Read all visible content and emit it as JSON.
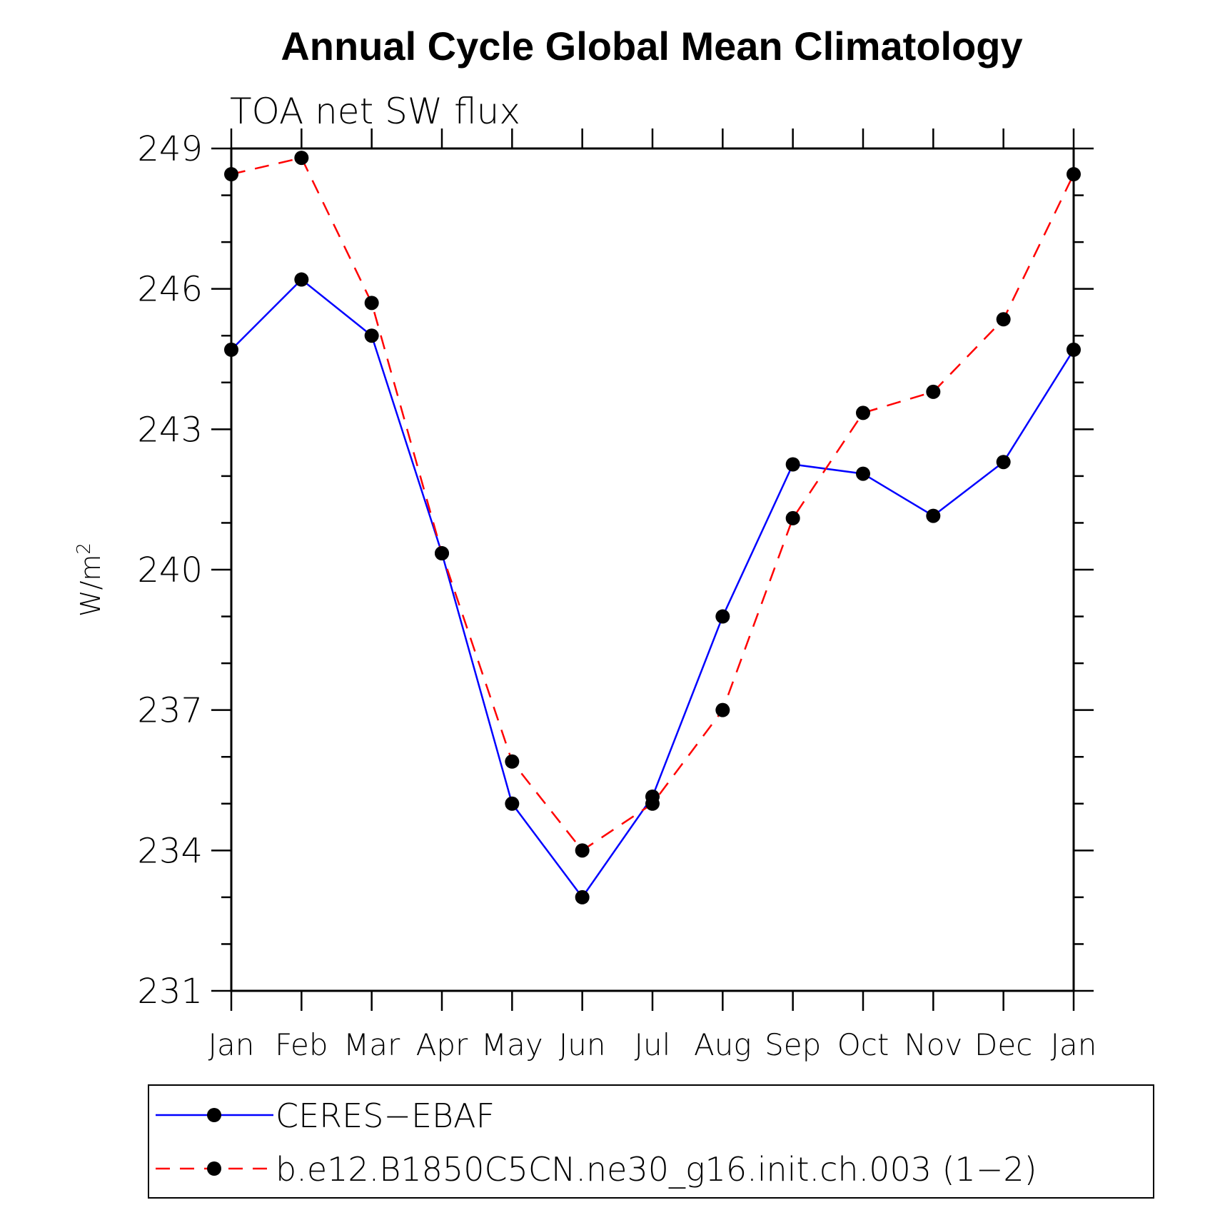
{
  "chart_data": {
    "type": "line",
    "title": "Annual Cycle Global Mean Climatology",
    "subtitle": "TOA net SW flux",
    "ylabel_main": "W/m",
    "ylabel_superscript": "2",
    "categories": [
      "Jan",
      "Feb",
      "Mar",
      "Apr",
      "May",
      "Jun",
      "Jul",
      "Aug",
      "Sep",
      "Oct",
      "Nov",
      "Dec",
      "Jan"
    ],
    "ylim": [
      231,
      249
    ],
    "yticks": [
      "231",
      "234",
      "237",
      "240",
      "243",
      "246",
      "249"
    ],
    "series": [
      {
        "name": "CERES−EBAF",
        "color": "#0000ff",
        "dash": "solid",
        "values": [
          244.7,
          246.2,
          245.0,
          240.35,
          235.0,
          233.0,
          235.15,
          239.0,
          242.25,
          242.05,
          241.15,
          242.3,
          244.7
        ]
      },
      {
        "name": "b.e12.B1850C5CN.ne30_g16.init.ch.003 (1−2)",
        "color": "#ff0000",
        "dash": "dashed",
        "values": [
          248.45,
          248.8,
          245.7,
          240.35,
          235.9,
          234.0,
          235.0,
          237.0,
          241.1,
          243.35,
          243.8,
          245.35,
          248.45
        ]
      }
    ],
    "legend": "bottom",
    "marker_color": "#000000"
  }
}
